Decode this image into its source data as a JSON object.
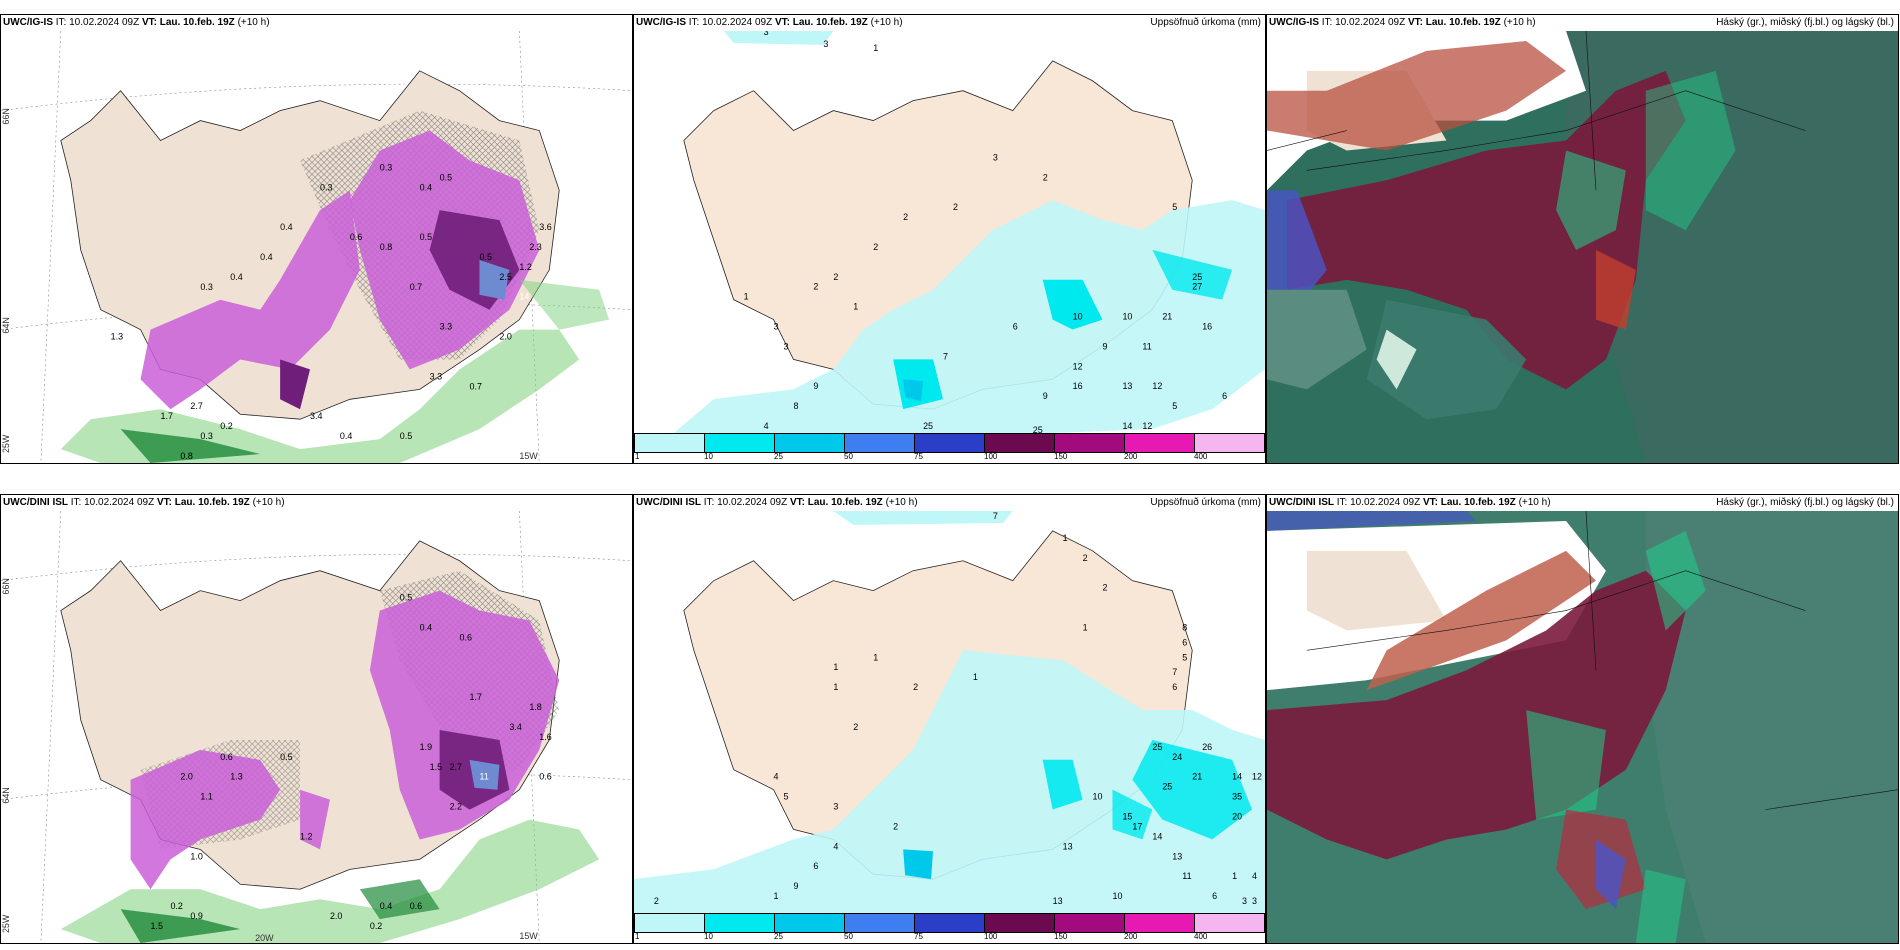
{
  "rows": [
    {
      "model": "UWC/IG-IS",
      "panels": [
        {
          "model": "UWC/IG-IS",
          "it": "10.02.2024 09Z",
          "vt": "Lau. 10.feb. 19Z",
          "lead": "(+10 h)",
          "title": ""
        },
        {
          "model": "UWC/IG-IS",
          "it": "10.02.2024 09Z",
          "vt": "Lau. 10.feb. 19Z",
          "lead": "(+10 h)",
          "title": "Uppsöfnuð úrkoma (mm)"
        },
        {
          "model": "UWC/IG-IS",
          "it": "10.02.2024 09Z",
          "vt": "Lau. 10.feb. 19Z",
          "lead": "(+10 h)",
          "title": "Háský (gr.), miðský (fj.bl.) og lágský (bl.)"
        }
      ]
    },
    {
      "model": "UWC/DINI ISL",
      "panels": [
        {
          "model": "UWC/DINI ISL",
          "it": "10.02.2024 09Z",
          "vt": "Lau. 10.feb. 19Z",
          "lead": "(+10 h)",
          "title": ""
        },
        {
          "model": "UWC/DINI ISL",
          "it": "10.02.2024 09Z",
          "vt": "Lau. 10.feb. 19Z",
          "lead": "(+10 h)",
          "title": "Uppsöfnuð úrkoma (mm)"
        },
        {
          "model": "UWC/DINI ISL",
          "it": "10.02.2024 09Z",
          "vt": "Lau. 10.feb. 19Z",
          "lead": "(+10 h)",
          "title": "Háský (gr.), miðský (fj.bl.) og lágský (bl.)"
        }
      ]
    }
  ],
  "labels": {
    "it_prefix": "IT:",
    "vt_prefix": "VT:",
    "lat66": "66N",
    "lat64": "64N",
    "lon25": "25W",
    "lon20": "20W",
    "lon15": "15W"
  },
  "colorbar": {
    "ticks": [
      "1",
      "10",
      "25",
      "50",
      "75",
      "100",
      "150",
      "200",
      "400"
    ],
    "colors": [
      "#bff6f8",
      "#00e9ee",
      "#00c8ea",
      "#3f7ef0",
      "#2a3ec8",
      "#6b0a4e",
      "#a30a7d",
      "#e61ab2",
      "#f5b6f0"
    ]
  },
  "precip_values": {
    "ig_is": [
      "3",
      "3",
      "1",
      "3",
      "2",
      "2",
      "2",
      "1",
      "2",
      "2",
      "1",
      "2",
      "3",
      "3",
      "9",
      "8",
      "4",
      "7",
      "6",
      "9",
      "10",
      "9",
      "10",
      "11",
      "12",
      "16",
      "13",
      "12",
      "5",
      "6",
      "14",
      "12",
      "25",
      "27",
      "21",
      "16",
      "5",
      "25",
      "25"
    ],
    "dini": [
      "7",
      "1",
      "2",
      "2",
      "1",
      "8",
      "6",
      "5",
      "7",
      "6",
      "1",
      "1",
      "1",
      "2",
      "1",
      "2",
      "4",
      "5",
      "3",
      "2",
      "1",
      "9",
      "6",
      "4",
      "13",
      "10",
      "15",
      "17",
      "14",
      "25",
      "13",
      "11",
      "26",
      "24",
      "21",
      "25",
      "20",
      "14",
      "12",
      "35",
      "10",
      "13",
      "1",
      "4",
      "3",
      "6",
      "3",
      "2"
    ]
  },
  "snow_values": {
    "ig_is": [
      "0.3",
      "0.4",
      "0.3",
      "0.4",
      "0.5",
      "0.3",
      "0.4",
      "0.4",
      "0.6",
      "0.8",
      "0.5",
      "0.7",
      "0.5",
      "2.5",
      "14",
      "3.3",
      "2.0",
      "3.3",
      "3.4",
      "2.7",
      "1.7",
      "1.3",
      "0.2",
      "0.3",
      "0.8",
      "0.4",
      "0.5",
      "0.7",
      "1.2",
      "2.3",
      "3.6"
    ],
    "dini": [
      "0.5",
      "0.4",
      "0.6",
      "1.7",
      "3.4",
      "1.8",
      "1.5",
      "0.6",
      "1.9",
      "2.7",
      "2.0",
      "1.1",
      "1.3",
      "0.5",
      "0.6",
      "1.2",
      "1.0",
      "0.2",
      "0.9",
      "0.4",
      "0.6",
      "2.0",
      "0.2",
      "1.5",
      "11",
      "1.6",
      "2.2"
    ]
  }
}
